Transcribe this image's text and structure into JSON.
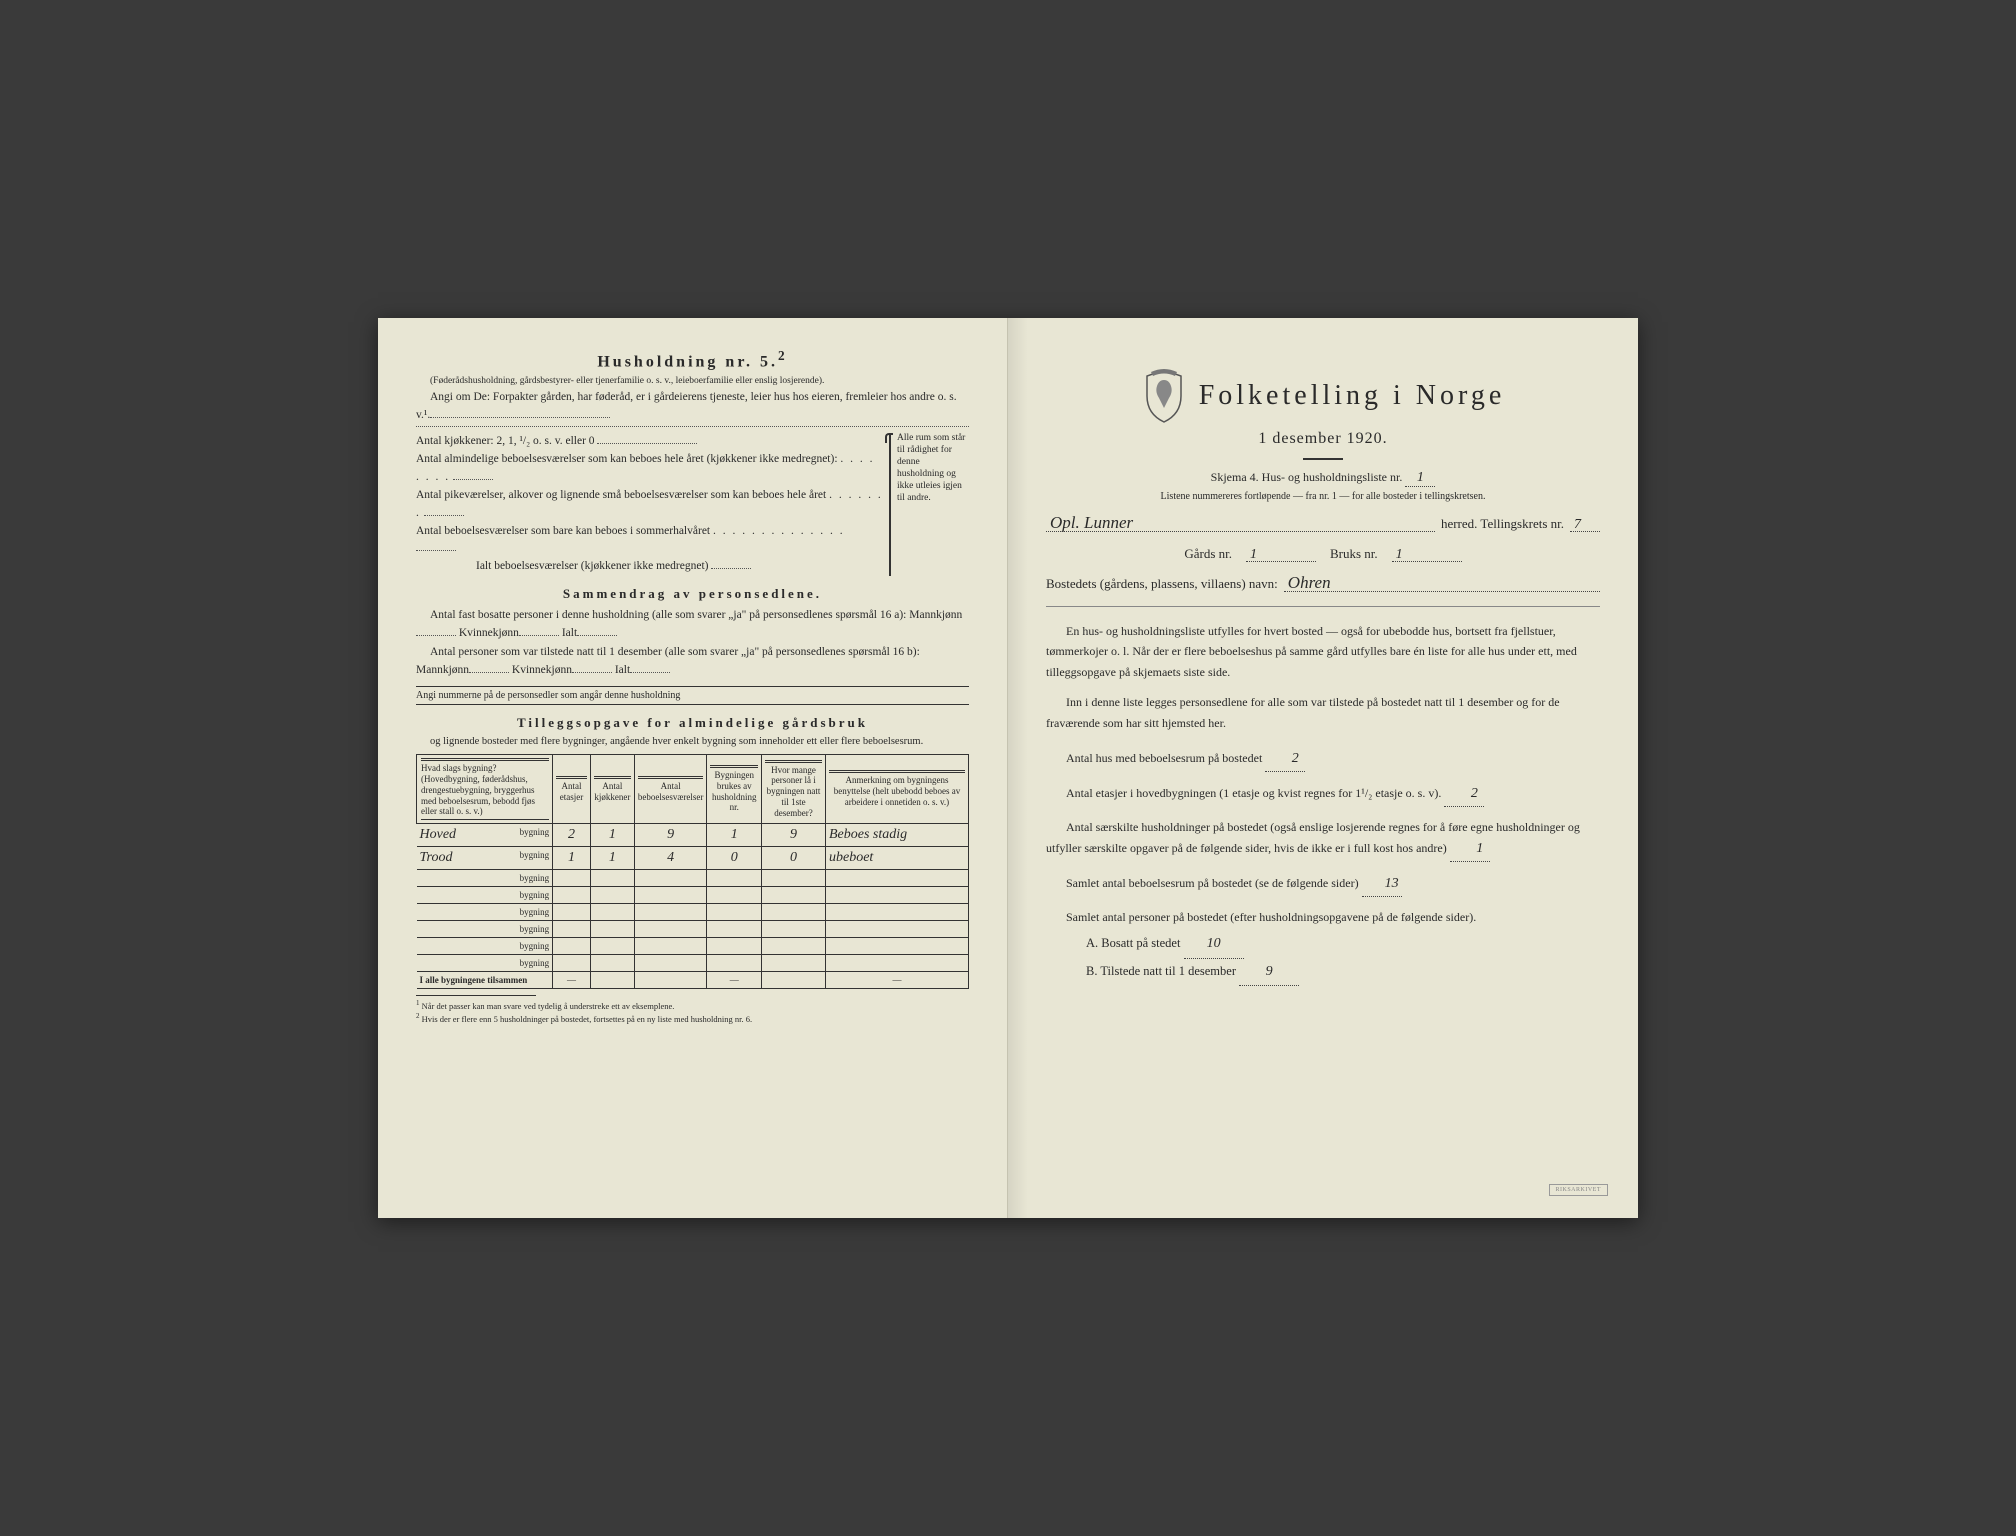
{
  "colors": {
    "paper": "#e8e6d4",
    "ink": "#2a2a2a",
    "background": "#3a3a3a"
  },
  "left": {
    "title": "Husholdning nr. 5.",
    "title_sup": "2",
    "note": "(Føderådshusholdning, gårdsbestyrer- eller tjenerfamilie o. s. v., leieboerfamilie eller enslig losjerende).",
    "angi_line": "Angi om De: Forpakter gården, har føderåd, er i gårdeierens tjeneste, leier hus hos eieren, fremleier hos andre o. s. v.¹.",
    "kitchen_line": "Antal kjøkkener: 2, 1, ¹/₂ o. s. v. eller 0",
    "rooms1": "Antal almindelige beboelsesværelser som kan beboes hele året (kjøkkener ikke medregnet):",
    "rooms2": "Antal pikeværelser, alkover og lignende små beboelsesværelser som kan beboes hele året",
    "rooms3": "Antal beboelsesværelser som bare kan beboes i sommerhalvåret",
    "rooms_total": "Ialt beboelsesværelser (kjøkkener ikke medregnet)",
    "brace_text": "Alle rum som står til rådighet for denne husholdning og ikke utleies igjen til andre.",
    "summary_heading": "Sammendrag av personsedlene.",
    "summary_p1": "Antal fast bosatte personer i denne husholdning (alle som svarer „ja\" på personsedlenes spørsmål 16 a): Mannkjønn",
    "kvinne": "Kvinnekjønn",
    "ialt": "Ialt",
    "summary_p2": "Antal personer som var tilstede natt til 1 desember (alle som svarer „ja\" på personsedlenes spørsmål 16 b): Mannkjønn",
    "angi_nummerne": "Angi nummerne på de personsedler som angår denne husholdning",
    "tillegg_heading": "Tilleggsopgave for almindelige gårdsbruk",
    "tillegg_sub": "og lignende bosteder med flere bygninger, angående hver enkelt bygning som inneholder ett eller flere beboelsesrum.",
    "table": {
      "headers": [
        "Hvad slags bygning?\n(Hovedbygning, føderådshus, drengestuebygning, bryggerhus med beboelsesrum, bebodd fjøs eller stall o. s. v.)",
        "Antal etasjer",
        "Antal kjøkkener",
        "Antal beboelsesværelser",
        "Bygningen brukes av husholdning nr.",
        "Hvor mange personer lå i bygningen natt til 1ste desember?",
        "Anmerkning om bygningens benyttelse (helt ubebodd beboes av arbeidere i onnetiden o. s. v.)"
      ],
      "row_suffix": "bygning",
      "rows": [
        {
          "name": "Hoved",
          "etasjer": "2",
          "kjokken": "1",
          "vaer": "9",
          "hush": "1",
          "pers": "9",
          "anm": "Beboes stadig"
        },
        {
          "name": "Trood",
          "etasjer": "1",
          "kjokken": "1",
          "vaer": "4",
          "hush": "0",
          "pers": "0",
          "anm": "ubeboet"
        },
        {
          "name": "",
          "etasjer": "",
          "kjokken": "",
          "vaer": "",
          "hush": "",
          "pers": "",
          "anm": ""
        },
        {
          "name": "",
          "etasjer": "",
          "kjokken": "",
          "vaer": "",
          "hush": "",
          "pers": "",
          "anm": ""
        },
        {
          "name": "",
          "etasjer": "",
          "kjokken": "",
          "vaer": "",
          "hush": "",
          "pers": "",
          "anm": ""
        },
        {
          "name": "",
          "etasjer": "",
          "kjokken": "",
          "vaer": "",
          "hush": "",
          "pers": "",
          "anm": ""
        },
        {
          "name": "",
          "etasjer": "",
          "kjokken": "",
          "vaer": "",
          "hush": "",
          "pers": "",
          "anm": ""
        },
        {
          "name": "",
          "etasjer": "",
          "kjokken": "",
          "vaer": "",
          "hush": "",
          "pers": "",
          "anm": ""
        }
      ],
      "total_label": "I alle bygningene tilsammen",
      "dash": "—"
    },
    "footnote1": "Når det passer kan man svare ved tydelig å understreke ett av eksemplene.",
    "footnote2": "Hvis der er flere enn 5 husholdninger på bostedet, fortsettes på en ny liste med husholdning nr. 6."
  },
  "right": {
    "main_title": "Folketelling i Norge",
    "date": "1 desember 1920.",
    "schema": "Skjema 4.  Hus- og husholdningsliste nr.",
    "schema_nr": "1",
    "instruction": "Listene nummereres fortløpende — fra nr. 1 — for alle bosteder i tellingskretsen.",
    "herred_hw": "Opl. Lunner",
    "herred_label": "herred.   Tellingskrets nr.",
    "krets_nr": "7",
    "gards_label": "Gårds nr.",
    "gards_nr": "1",
    "bruks_label": "Bruks nr.",
    "bruks_nr": "1",
    "bosted_label": "Bostedets (gårdens, plassens, villaens) navn:",
    "bosted_hw": "Ohren",
    "para1": "En hus- og husholdningsliste utfylles for hvert bosted — også for ubebodde hus, bortsett fra fjellstuer, tømmerkojer o. l.  Når der er flere beboelseshus på samme gård utfylles bare én liste for alle hus under ett, med tilleggsopgave på skjemaets siste side.",
    "para2": "Inn i denne liste legges personsedlene for alle som var tilstede på bostedet natt til 1 desember og for de fraværende som har sitt hjemsted her.",
    "q1": "Antal hus med beboelsesrum på bostedet",
    "q1_val": "2",
    "q2a": "Antal etasjer i hovedbygningen (1 etasje og kvist regnes for 1¹/₂ etasje o. s. v).",
    "q2_val": "2",
    "q3": "Antal særskilte husholdninger på bostedet (også enslige losjerende regnes for å føre egne husholdninger og utfyller særskilte opgaver på de følgende sider, hvis de ikke er i full kost hos andre)",
    "q3_val": "1",
    "q4": "Samlet antal beboelsesrum på bostedet (se de følgende sider)",
    "q4_val": "13",
    "q5": "Samlet antal personer på bostedet (efter husholdningsopgavene på de følgende sider).",
    "qA": "A.  Bosatt på stedet",
    "qA_val": "10",
    "qB": "B.  Tilstede natt til 1 desember",
    "qB_val": "9",
    "stamp": "RIKSARKIVET"
  }
}
